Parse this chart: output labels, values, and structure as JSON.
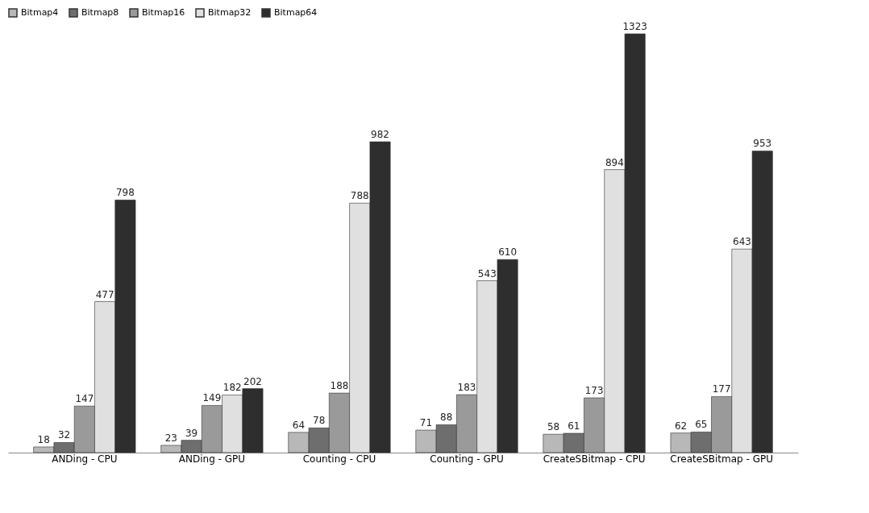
{
  "chart_data": {
    "type": "bar",
    "categories": [
      "ANDing - CPU",
      "ANDing - GPU",
      "Counting - CPU",
      "Counting - GPU",
      "CreateSBitmap - CPU",
      "CreateSBitmap - GPU"
    ],
    "series": [
      {
        "name": "Bitmap4",
        "color": "#b8b8b8",
        "values": [
          18,
          23,
          64,
          71,
          58,
          62
        ]
      },
      {
        "name": "Bitmap8",
        "color": "#6e6e6e",
        "values": [
          32,
          39,
          78,
          88,
          61,
          65
        ]
      },
      {
        "name": "Bitmap16",
        "color": "#9a9a9a",
        "values": [
          147,
          149,
          188,
          183,
          173,
          177
        ]
      },
      {
        "name": "Bitmap32",
        "color": "#e0e0e0",
        "values": [
          477,
          182,
          788,
          543,
          894,
          643
        ]
      },
      {
        "name": "Bitmap64",
        "color": "#2e2e2e",
        "values": [
          798,
          202,
          982,
          610,
          1323,
          953
        ]
      }
    ],
    "data_labels": true,
    "legend": "top",
    "grid": false,
    "tick_labels": "x"
  }
}
